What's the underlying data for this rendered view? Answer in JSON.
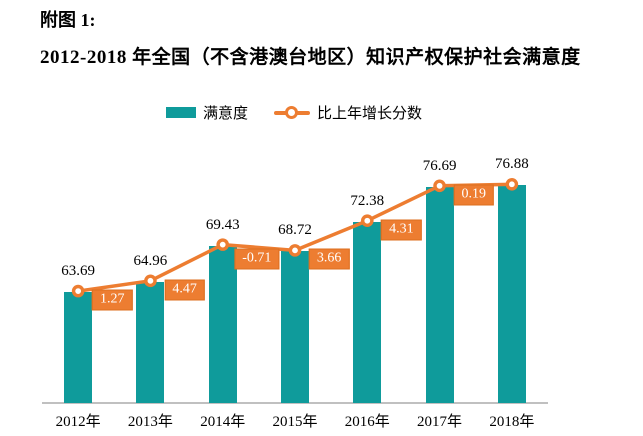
{
  "figure_label": "附图 1:",
  "title": "2012-2018 年全国（不含港澳台地区）知识产权保护社会满意度",
  "legend": {
    "position": "top",
    "items": [
      {
        "label": "满意度",
        "marker": "bar-swatch"
      },
      {
        "label": "比上年增长分数",
        "marker": "line-marker"
      }
    ]
  },
  "colors": {
    "bar": "#0F9B9B",
    "line": "#ED7D31",
    "growth_box_fill": "#ED7D31",
    "growth_box_border": "#DC6E1E",
    "growth_box_text": "#FFFFFF",
    "axis_line": "#C0C0C0",
    "label_text": "#000000",
    "background": "#FFFFFF"
  },
  "chart_data": {
    "type": "bar",
    "subtype": "combo-bar-line",
    "title": "2012-2018 年全国（不含港澳台地区）知识产权保护社会满意度",
    "categories": [
      "2012年",
      "2013年",
      "2014年",
      "2015年",
      "2016年",
      "2017年",
      "2018年"
    ],
    "series": [
      {
        "name": "满意度",
        "type": "bar",
        "values": [
          63.69,
          64.96,
          69.43,
          68.72,
          72.38,
          76.69,
          76.88
        ]
      },
      {
        "name": "比上年增长分数",
        "type": "line",
        "values": [
          null,
          1.27,
          4.47,
          -0.71,
          3.66,
          4.31,
          0.19
        ]
      }
    ],
    "xlabel": "",
    "ylabel": "",
    "bar_axis_implied_range": [
      50,
      81
    ],
    "grid": false,
    "y_axis_visible": false,
    "legend_position": "top",
    "data_labels": true
  }
}
